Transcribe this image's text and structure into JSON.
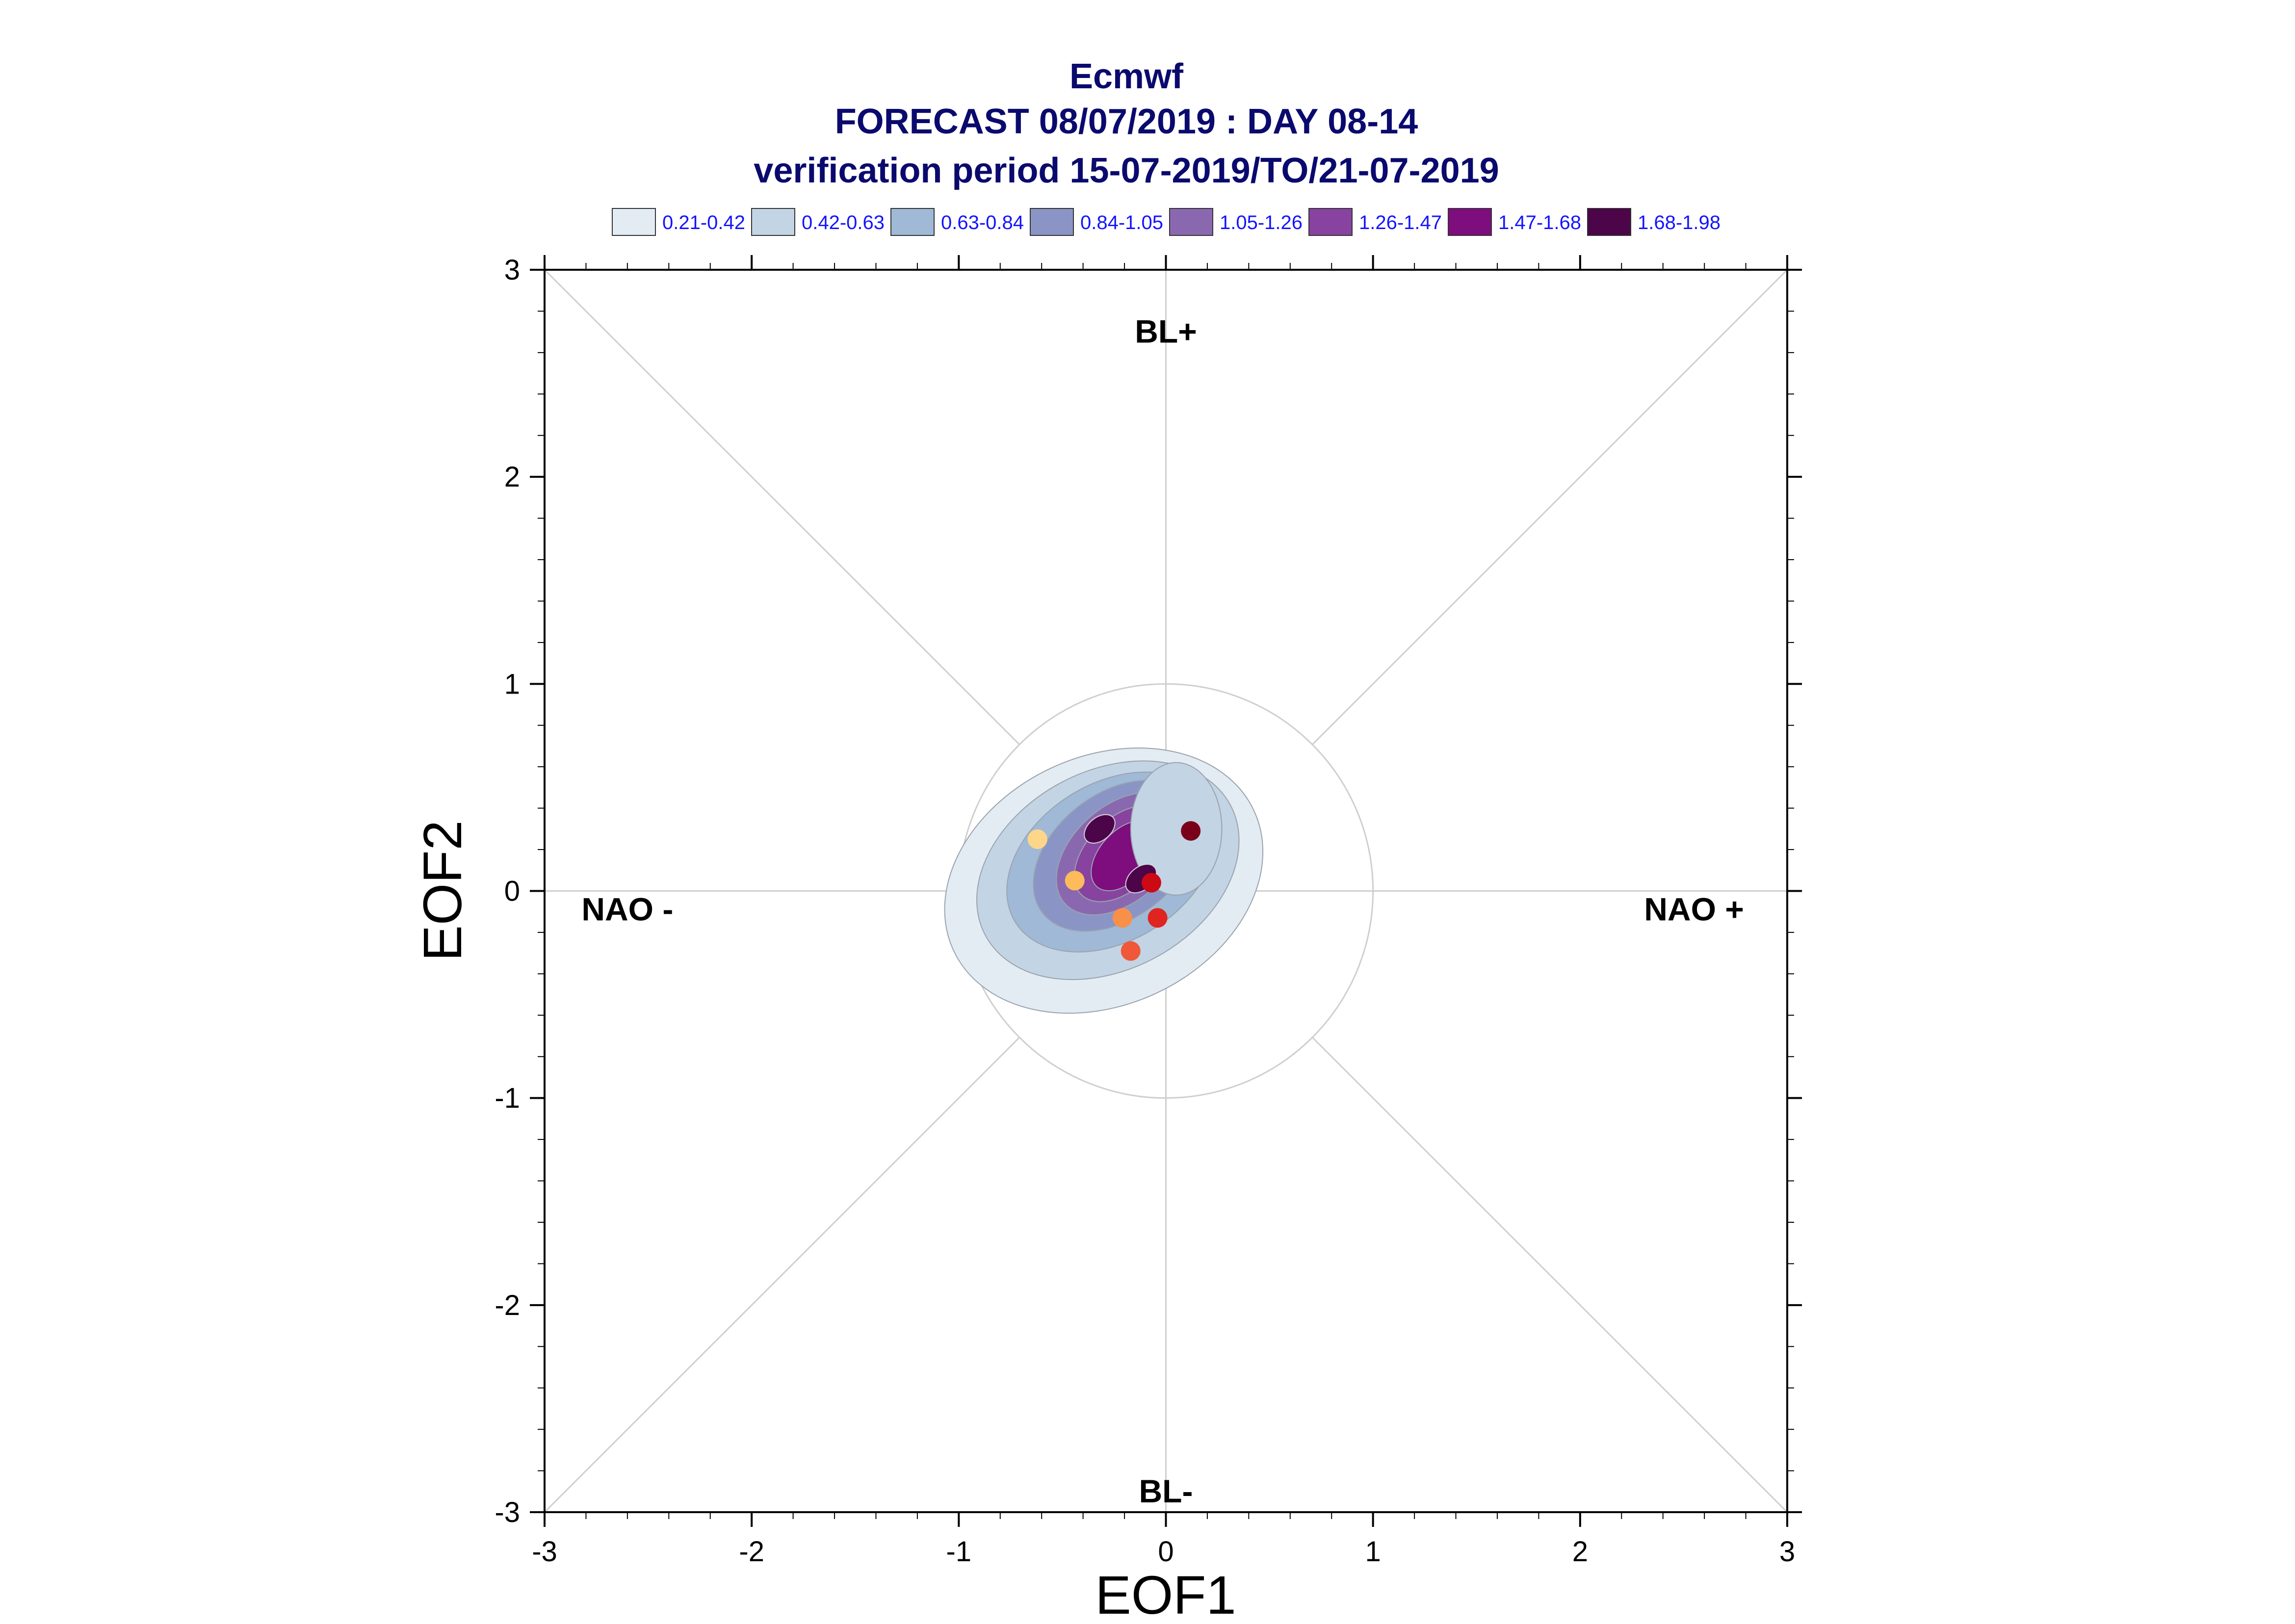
{
  "chart_data": {
    "type": "scatter",
    "title": "Ecmwf",
    "subtitle_line1": "FORECAST 08/07/2019 : DAY 08-14",
    "subtitle_line2": "verification period 15-07-2019/TO/21-07-2019",
    "xlabel": "EOF1",
    "ylabel": "EOF2",
    "xlim": [
      -3,
      3
    ],
    "ylim": [
      -3,
      3
    ],
    "xticks": [
      -3,
      -2,
      -1,
      0,
      1,
      2,
      3
    ],
    "yticks": [
      -3,
      -2,
      -1,
      0,
      1,
      2,
      3
    ],
    "grid": false,
    "reference_circle_radius": 1,
    "diagonal_lines": true,
    "legend_placement": "top",
    "legend": [
      {
        "label": "0.21-0.42",
        "color": "#e3ecf3"
      },
      {
        "label": "0.42-0.63",
        "color": "#c3d4e4"
      },
      {
        "label": "0.63-0.84",
        "color": "#9fb9d6"
      },
      {
        "label": "0.84-1.05",
        "color": "#8a95c6"
      },
      {
        "label": "1.05-1.26",
        "color": "#8a68b0"
      },
      {
        "label": "1.26-1.47",
        "color": "#87439f"
      },
      {
        "label": "1.47-1.68",
        "color": "#7e0d7e"
      },
      {
        "label": "1.68-1.98",
        "color": "#4b0548"
      }
    ],
    "regime_labels": [
      {
        "text": "BL+",
        "x": 0,
        "y": 2.7
      },
      {
        "text": "BL-",
        "x": 0,
        "y": -2.9
      },
      {
        "text": "NAO -",
        "x": -2.6,
        "y": -0.09
      },
      {
        "text": "NAO +",
        "x": 2.55,
        "y": -0.09
      }
    ],
    "density_centers": [
      {
        "x": -0.32,
        "y": 0.3
      },
      {
        "x": -0.12,
        "y": 0.06
      }
    ],
    "points": [
      {
        "x": -0.62,
        "y": 0.25,
        "color": "#fdd68a"
      },
      {
        "x": -0.44,
        "y": 0.05,
        "color": "#fdbb5c"
      },
      {
        "x": -0.21,
        "y": -0.13,
        "color": "#f8904a"
      },
      {
        "x": -0.17,
        "y": -0.29,
        "color": "#f0583a"
      },
      {
        "x": -0.04,
        "y": -0.13,
        "color": "#e02420"
      },
      {
        "x": -0.07,
        "y": 0.04,
        "color": "#cc0a14"
      },
      {
        "x": 0.12,
        "y": 0.29,
        "color": "#7a0019"
      }
    ]
  }
}
